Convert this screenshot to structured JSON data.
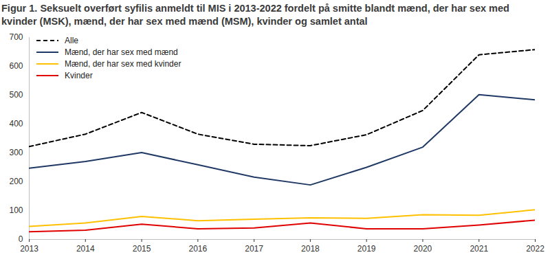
{
  "chart_data": {
    "type": "line",
    "title": "Figur 1. Seksuelt overført syfilis anmeldt til MIS i 2013-2022 fordelt på smitte blandt mænd, der har sex med kvinder (MSK), mænd, der har sex med mænd (MSM), kvinder og samlet antal",
    "x": [
      2013,
      2014,
      2015,
      2016,
      2017,
      2018,
      2019,
      2020,
      2021,
      2022
    ],
    "xlim": [
      2013,
      2022
    ],
    "xticks": [
      2013,
      2014,
      2015,
      2016,
      2017,
      2018,
      2019,
      2020,
      2021,
      2022
    ],
    "ylim": [
      0,
      700
    ],
    "yticks": [
      0,
      100,
      200,
      300,
      400,
      500,
      600,
      700
    ],
    "grid": false,
    "legend": "top-left",
    "series": [
      {
        "name": "Alle",
        "color": "#000000",
        "line_style": "dashed",
        "values": [
          322,
          365,
          440,
          365,
          330,
          325,
          363,
          447,
          640,
          658
        ]
      },
      {
        "name": "Mænd, der har sex med mænd",
        "color": "#1f3864",
        "line_style": "solid",
        "values": [
          247,
          270,
          301,
          259,
          216,
          189,
          250,
          320,
          502,
          484
        ]
      },
      {
        "name": "Mænd, der har sex med kvinder",
        "color": "#ffc000",
        "line_style": "solid",
        "values": [
          45,
          57,
          80,
          65,
          70,
          75,
          73,
          86,
          84,
          103
        ]
      },
      {
        "name": "Kvinder",
        "color": "#e00000",
        "line_style": "solid",
        "values": [
          27,
          32,
          53,
          37,
          40,
          57,
          37,
          37,
          50,
          67
        ]
      }
    ]
  }
}
